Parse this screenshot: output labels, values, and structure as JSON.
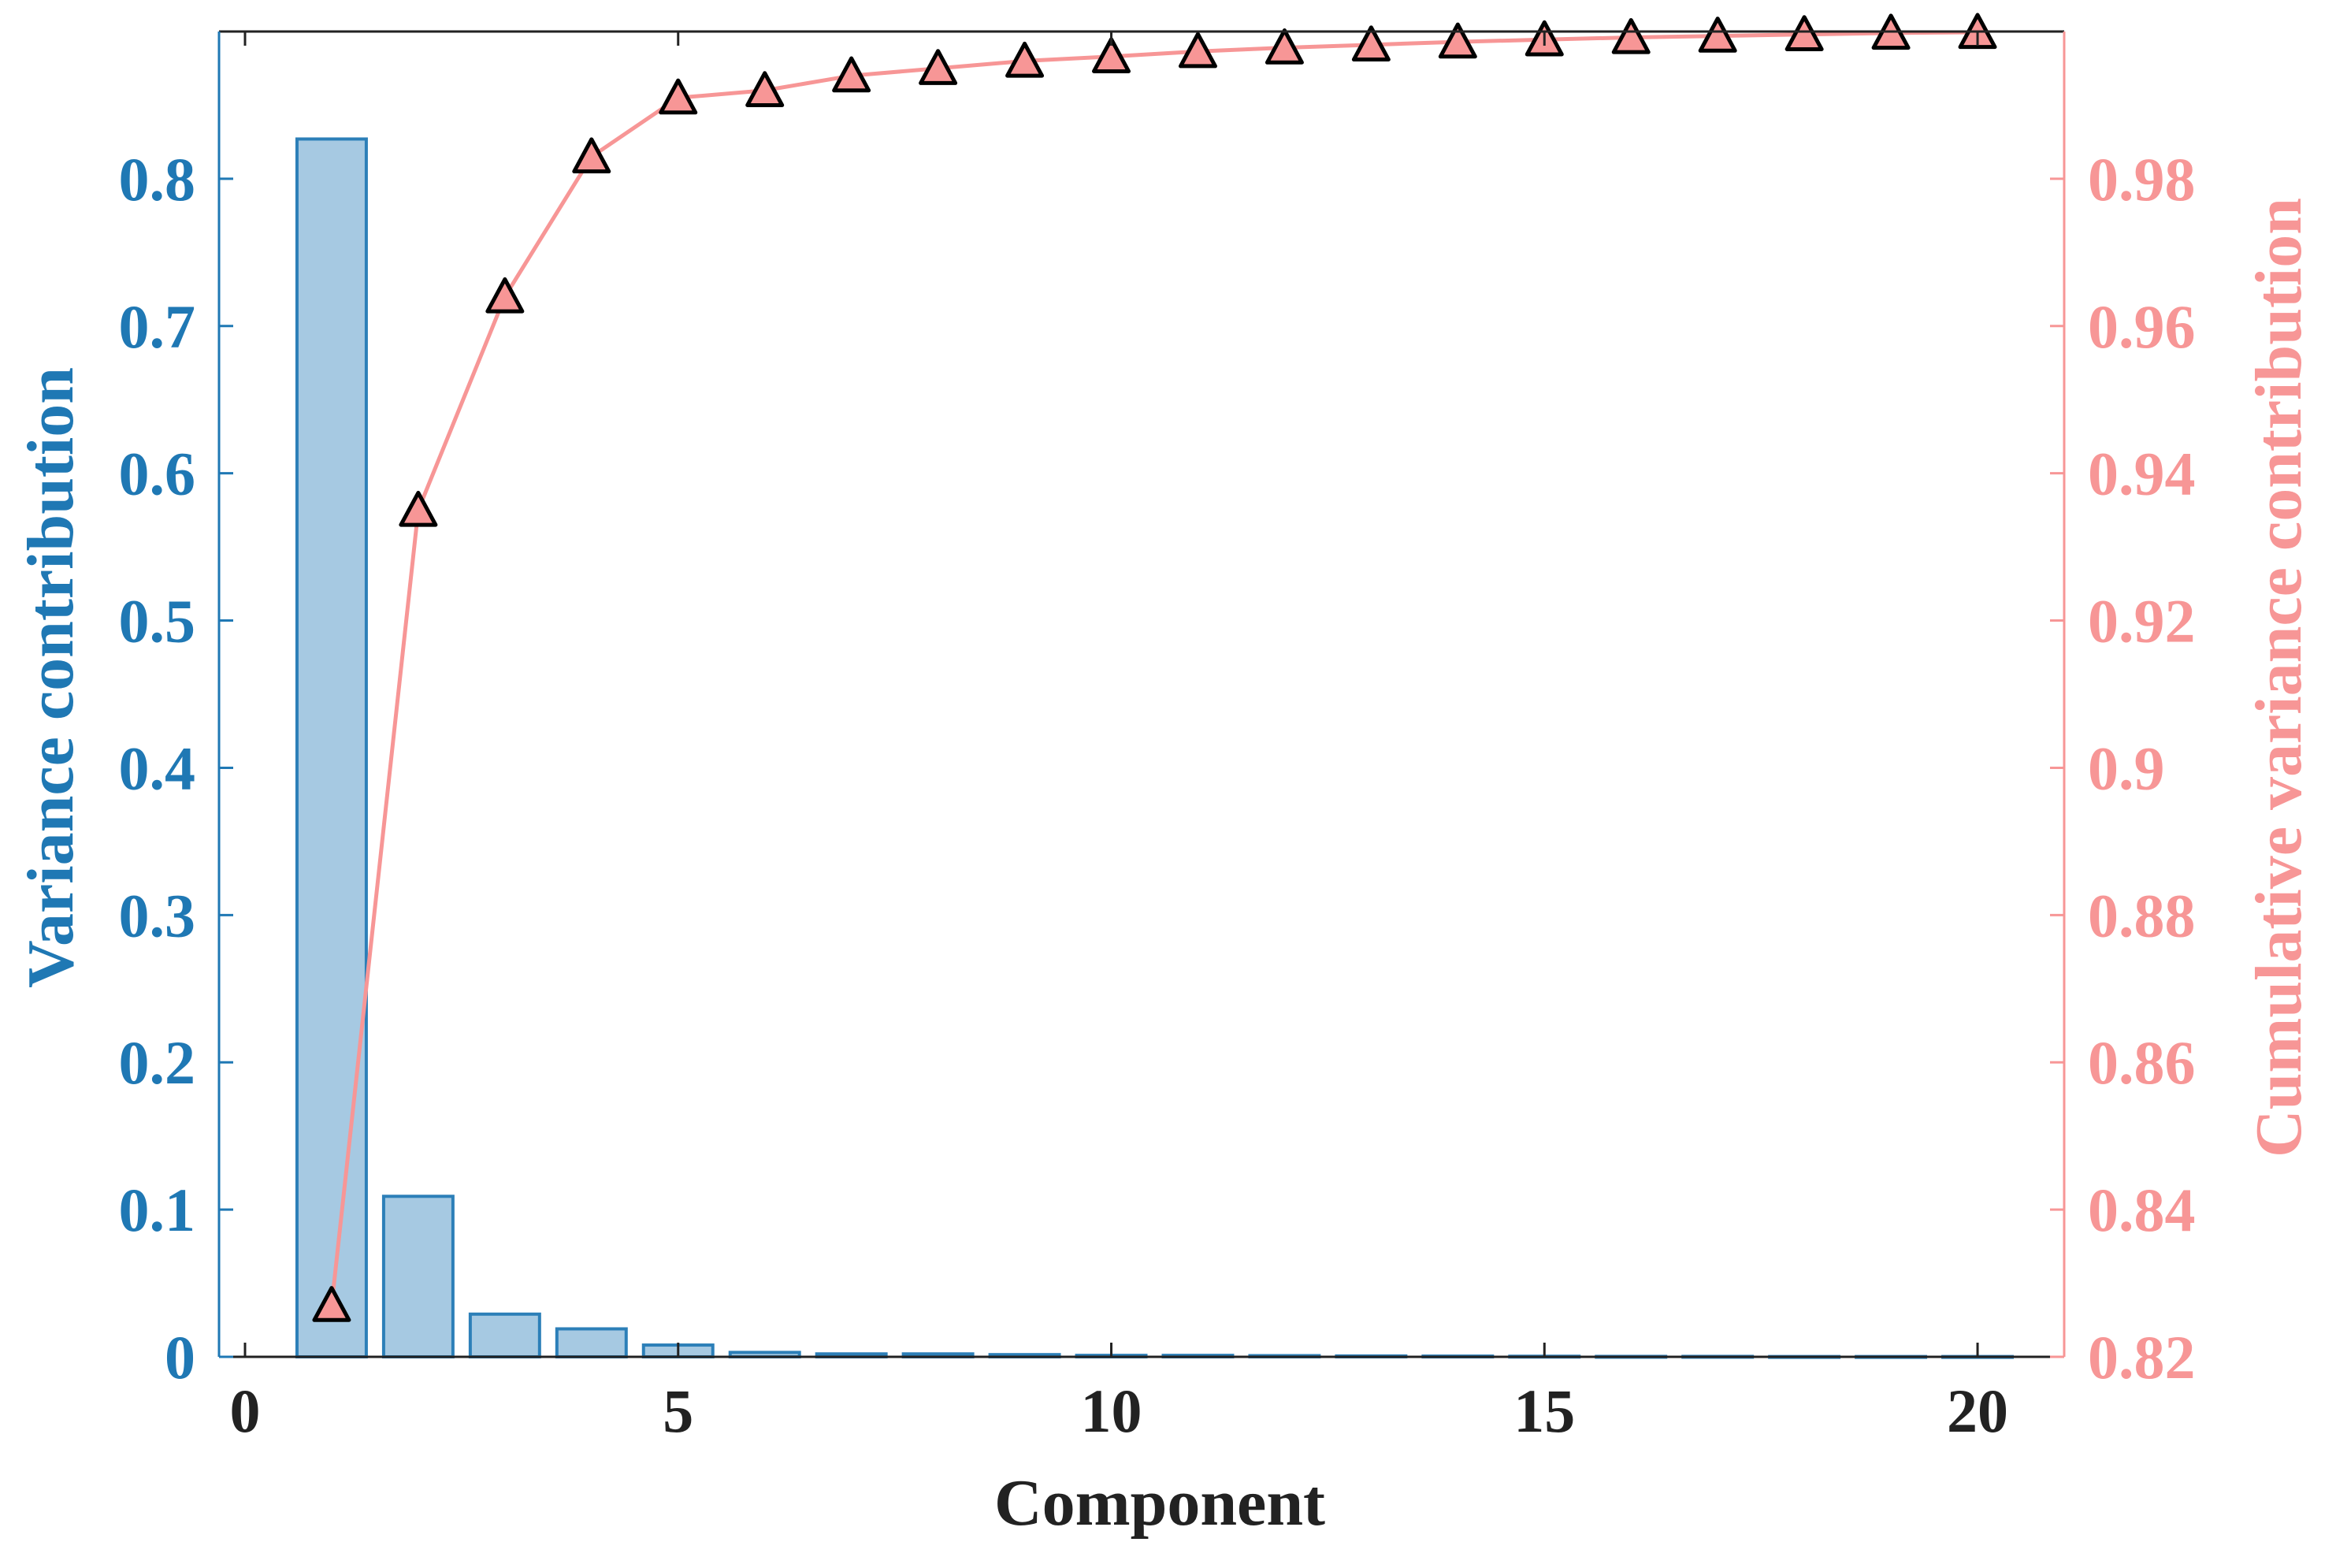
{
  "chart_data": {
    "type": "bar",
    "xlabel": "Component",
    "ylabel": "Variance contribution",
    "y2label": "Cumulative variance contribution",
    "xlim": [
      -0.3,
      21
    ],
    "ylim": [
      0,
      0.9
    ],
    "y2lim": [
      0.82,
      1.0
    ],
    "x_ticks": [
      0,
      5,
      10,
      15,
      20
    ],
    "y_ticks": [
      0,
      0.1,
      0.2,
      0.3,
      0.4,
      0.5,
      0.6,
      0.7,
      0.8
    ],
    "y_tick_labels": [
      "0",
      "0.1",
      "0.2",
      "0.3",
      "0.4",
      "0.5",
      "0.6",
      "0.7",
      "0.8"
    ],
    "y2_ticks": [
      0.82,
      0.84,
      0.86,
      0.88,
      0.9,
      0.92,
      0.94,
      0.96,
      0.98
    ],
    "y2_tick_labels": [
      "0.82",
      "0.84",
      "0.86",
      "0.88",
      "0.9",
      "0.92",
      "0.94",
      "0.96",
      "0.98"
    ],
    "categories": [
      1,
      2,
      3,
      4,
      5,
      6,
      7,
      8,
      9,
      10,
      11,
      12,
      13,
      14,
      15,
      16,
      17,
      18,
      19,
      20
    ],
    "series": [
      {
        "kind": "bar",
        "axis": "left",
        "values": [
          0.827,
          0.109,
          0.029,
          0.019,
          0.008,
          0.003,
          0.002,
          0.002,
          0.0015,
          0.001,
          0.001,
          0.0008,
          0.0006,
          0.0005,
          0.0004,
          0.0003,
          0.0003,
          0.0002,
          0.0002,
          0.0002
        ],
        "color": "#a6c9e2",
        "edge_color": "#2c7fb8"
      },
      {
        "kind": "line",
        "axis": "right",
        "marker": "triangle",
        "values": [
          0.827,
          0.935,
          0.964,
          0.983,
          0.991,
          0.992,
          0.994,
          0.995,
          0.996,
          0.9966,
          0.9973,
          0.9978,
          0.9982,
          0.9986,
          0.9989,
          0.9992,
          0.9994,
          0.9996,
          0.9998,
          0.9999
        ],
        "color": "#f79696",
        "marker_edge": "#000000"
      }
    ],
    "left_axis_color": "#1f78b4",
    "right_axis_color": "#f79696",
    "grid": false,
    "legend": "none"
  }
}
